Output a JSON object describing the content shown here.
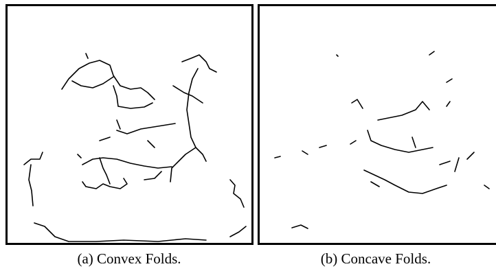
{
  "figure": {
    "panels": [
      {
        "caption": "(a) Convex Folds."
      },
      {
        "caption": "(b) Concave Folds."
      }
    ]
  }
}
